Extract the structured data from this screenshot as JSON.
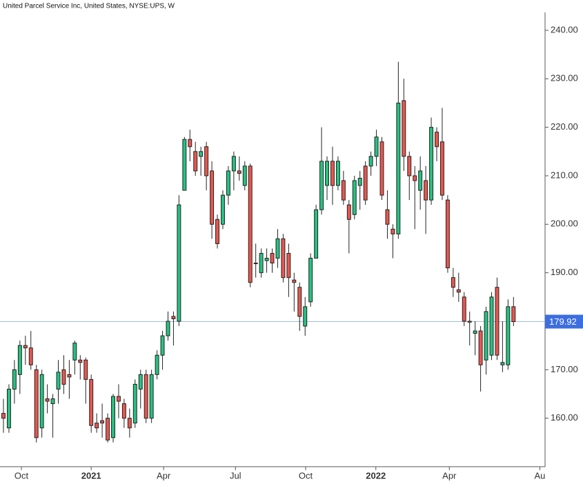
{
  "chart_data": {
    "type": "candlestick",
    "title": "United Parcel Service Inc, United States, NYSE:UPS, W",
    "up_color": "#26c281",
    "down_color": "#e8574f",
    "last_price": 179.92,
    "last_price_color": "#3d6ee0",
    "xlim": [
      -0.63,
      98.75
    ],
    "xticks": [
      {
        "value": 3.27,
        "label": "Oct"
      },
      {
        "value": 16.0,
        "label": "2021"
      },
      {
        "value": 29.2,
        "label": "Apr"
      },
      {
        "value": 42.3,
        "label": "Jul"
      },
      {
        "value": 55.1,
        "label": "Oct"
      },
      {
        "value": 67.9,
        "label": "2022"
      },
      {
        "value": 81.3,
        "label": "Apr"
      },
      {
        "value": 97.8,
        "label": "Au"
      }
    ],
    "ylim": [
      150,
      246.25
    ],
    "yticks": [
      {
        "value": 160,
        "label": "160.00"
      },
      {
        "value": 170,
        "label": "170.00"
      },
      {
        "value": 180,
        "label": "180.00"
      },
      {
        "value": 190,
        "label": "190.00"
      },
      {
        "value": 200,
        "label": "200.00"
      },
      {
        "value": 210,
        "label": "210.00"
      },
      {
        "value": 220,
        "label": "220.00"
      },
      {
        "value": 230,
        "label": "230.00"
      },
      {
        "value": 240,
        "label": "240.00"
      }
    ],
    "open": [
      161,
      158,
      166,
      169,
      175,
      174.5,
      170,
      158,
      164,
      163,
      166,
      170,
      169,
      172,
      172,
      172,
      168,
      159,
      159.5,
      160,
      156,
      164.5,
      163,
      160,
      159,
      166,
      169,
      160,
      169,
      173,
      177,
      181,
      180,
      207,
      217.5,
      215,
      214,
      216,
      211,
      201,
      200,
      206,
      211,
      211,
      208,
      212,
      192,
      190,
      192.5,
      194,
      193,
      197,
      194,
      188.5,
      187,
      179,
      184,
      193,
      203,
      208,
      213,
      208,
      209,
      204,
      202,
      208,
      212,
      212,
      214,
      217,
      203,
      199,
      198,
      225.5,
      214,
      210,
      207,
      209,
      205,
      219,
      217,
      205,
      189,
      186.5,
      185,
      180,
      177.5,
      178,
      172,
      173,
      187,
      171,
      171,
      183
    ],
    "high": [
      164,
      167,
      172,
      176,
      177,
      178,
      171,
      170,
      167,
      165,
      172,
      173,
      172,
      176,
      173,
      172.5,
      169,
      161,
      163,
      161,
      165,
      167,
      164,
      162,
      168,
      170,
      170,
      170,
      174,
      178,
      182,
      182,
      206,
      218,
      219.5,
      217,
      216,
      217,
      213,
      202,
      207,
      212,
      215,
      214,
      213,
      212.5,
      196,
      195,
      195,
      195,
      199,
      198,
      196,
      190,
      188,
      185,
      194,
      204,
      220,
      214,
      216,
      214,
      211,
      205,
      210,
      211,
      213,
      215,
      219.5,
      218,
      207,
      200,
      233.5,
      230,
      215,
      212,
      214,
      212,
      222,
      220,
      224,
      206,
      191,
      190,
      186,
      182,
      180,
      179,
      183,
      186,
      189,
      180,
      184.5,
      185
    ],
    "low": [
      157,
      157,
      163,
      165,
      171,
      170,
      155,
      156,
      161,
      156,
      163,
      165,
      164,
      169,
      168,
      163,
      157,
      157,
      156,
      155,
      155,
      160,
      158,
      156,
      158,
      162,
      159,
      159,
      168,
      170,
      176,
      175,
      179,
      207,
      213,
      210,
      210,
      207,
      197,
      195,
      199,
      204,
      207,
      209,
      207,
      187,
      189,
      189,
      190,
      190,
      191,
      188,
      185,
      182,
      178,
      177,
      183,
      193,
      202,
      205,
      204,
      207,
      204,
      194,
      201,
      203,
      204,
      210,
      212,
      205,
      197,
      193,
      197,
      211,
      205,
      199,
      203,
      198,
      204,
      213,
      205,
      190,
      185,
      184,
      179,
      175,
      173,
      165.5,
      169,
      172,
      172,
      169.5,
      170,
      179
    ],
    "close": [
      160,
      166,
      170,
      175,
      174.5,
      171,
      156,
      169,
      163.5,
      164,
      169.5,
      167,
      168.5,
      175.5,
      171.5,
      168,
      158.5,
      158,
      159,
      155.5,
      164.5,
      163.5,
      160,
      158,
      167,
      169,
      160,
      169,
      173,
      177,
      180,
      180.5,
      204,
      217.5,
      216,
      211,
      215,
      210,
      200,
      196,
      206,
      211,
      214,
      210.5,
      212,
      188,
      192,
      194,
      193,
      192,
      197,
      189,
      189,
      188,
      181,
      183,
      193,
      203,
      213,
      213,
      208,
      213,
      205,
      201,
      209,
      209.5,
      205,
      214,
      218,
      206,
      200,
      198,
      225,
      214,
      210,
      209,
      211,
      205,
      220,
      216,
      206,
      191,
      187,
      186,
      180,
      179.8,
      178,
      171,
      182,
      185,
      173,
      171.5,
      183,
      179.92
    ]
  }
}
